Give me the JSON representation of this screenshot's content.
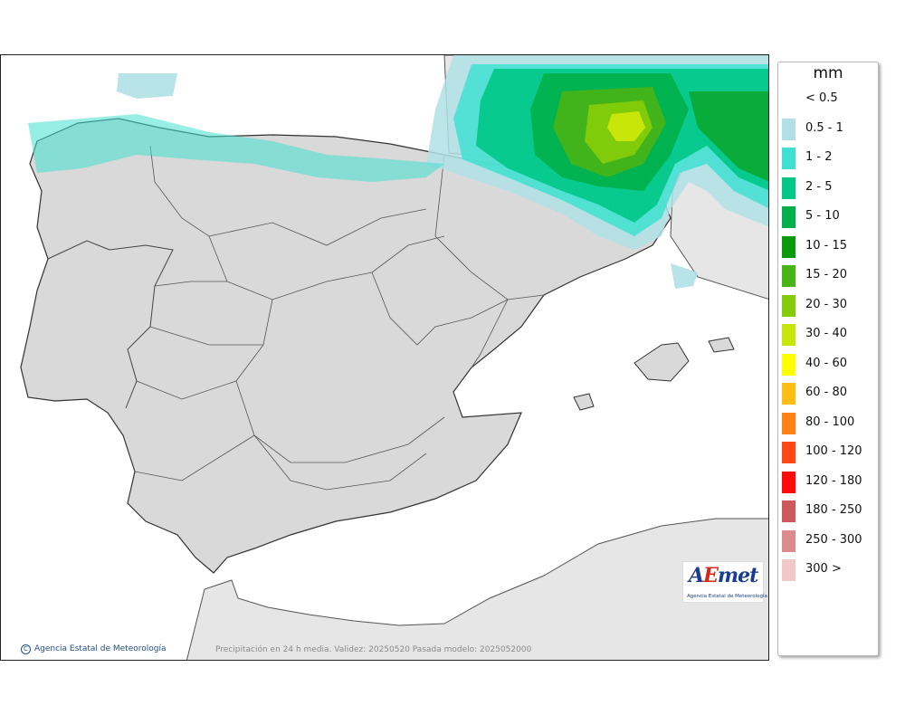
{
  "legend": {
    "title": "mm",
    "items": [
      {
        "label": "< 0.5",
        "color": "#ffffff"
      },
      {
        "label": "0.5 - 1",
        "color": "#b0e0e6"
      },
      {
        "label": "1 - 2",
        "color": "#40e0d0"
      },
      {
        "label": "2 - 5",
        "color": "#00c887"
      },
      {
        "label": "5 - 10",
        "color": "#00b04a"
      },
      {
        "label": "10 - 15",
        "color": "#0a9a0a"
      },
      {
        "label": "15 - 20",
        "color": "#48b415"
      },
      {
        "label": "20 - 30",
        "color": "#84cc0a"
      },
      {
        "label": "30 - 40",
        "color": "#c8e60a"
      },
      {
        "label": "40 - 60",
        "color": "#ffff00"
      },
      {
        "label": "60 - 80",
        "color": "#ffbe14"
      },
      {
        "label": "80 - 100",
        "color": "#ff8214"
      },
      {
        "label": "100 - 120",
        "color": "#ff4614"
      },
      {
        "label": "120 - 180",
        "color": "#ff0a0a"
      },
      {
        "label": "180 - 250",
        "color": "#cd5a5a"
      },
      {
        "label": "250 - 300",
        "color": "#dc8c8c"
      },
      {
        "label": "300 >",
        "color": "#f0c8c8"
      }
    ]
  },
  "map": {
    "credit": "Agencia Estatal de Meteorología",
    "caption": "Precipitación en 24 h media. Validez: 20250520 Pasada modelo: 2025052000",
    "logo_text": "AEmet",
    "logo_subtitle": "Agencia Estatal de Meteorología"
  },
  "colors": {
    "land": "#dcdcdc",
    "neighbour_land": "#e8e8e8",
    "sea": "#ffffff",
    "border": "#3a3a3a"
  }
}
